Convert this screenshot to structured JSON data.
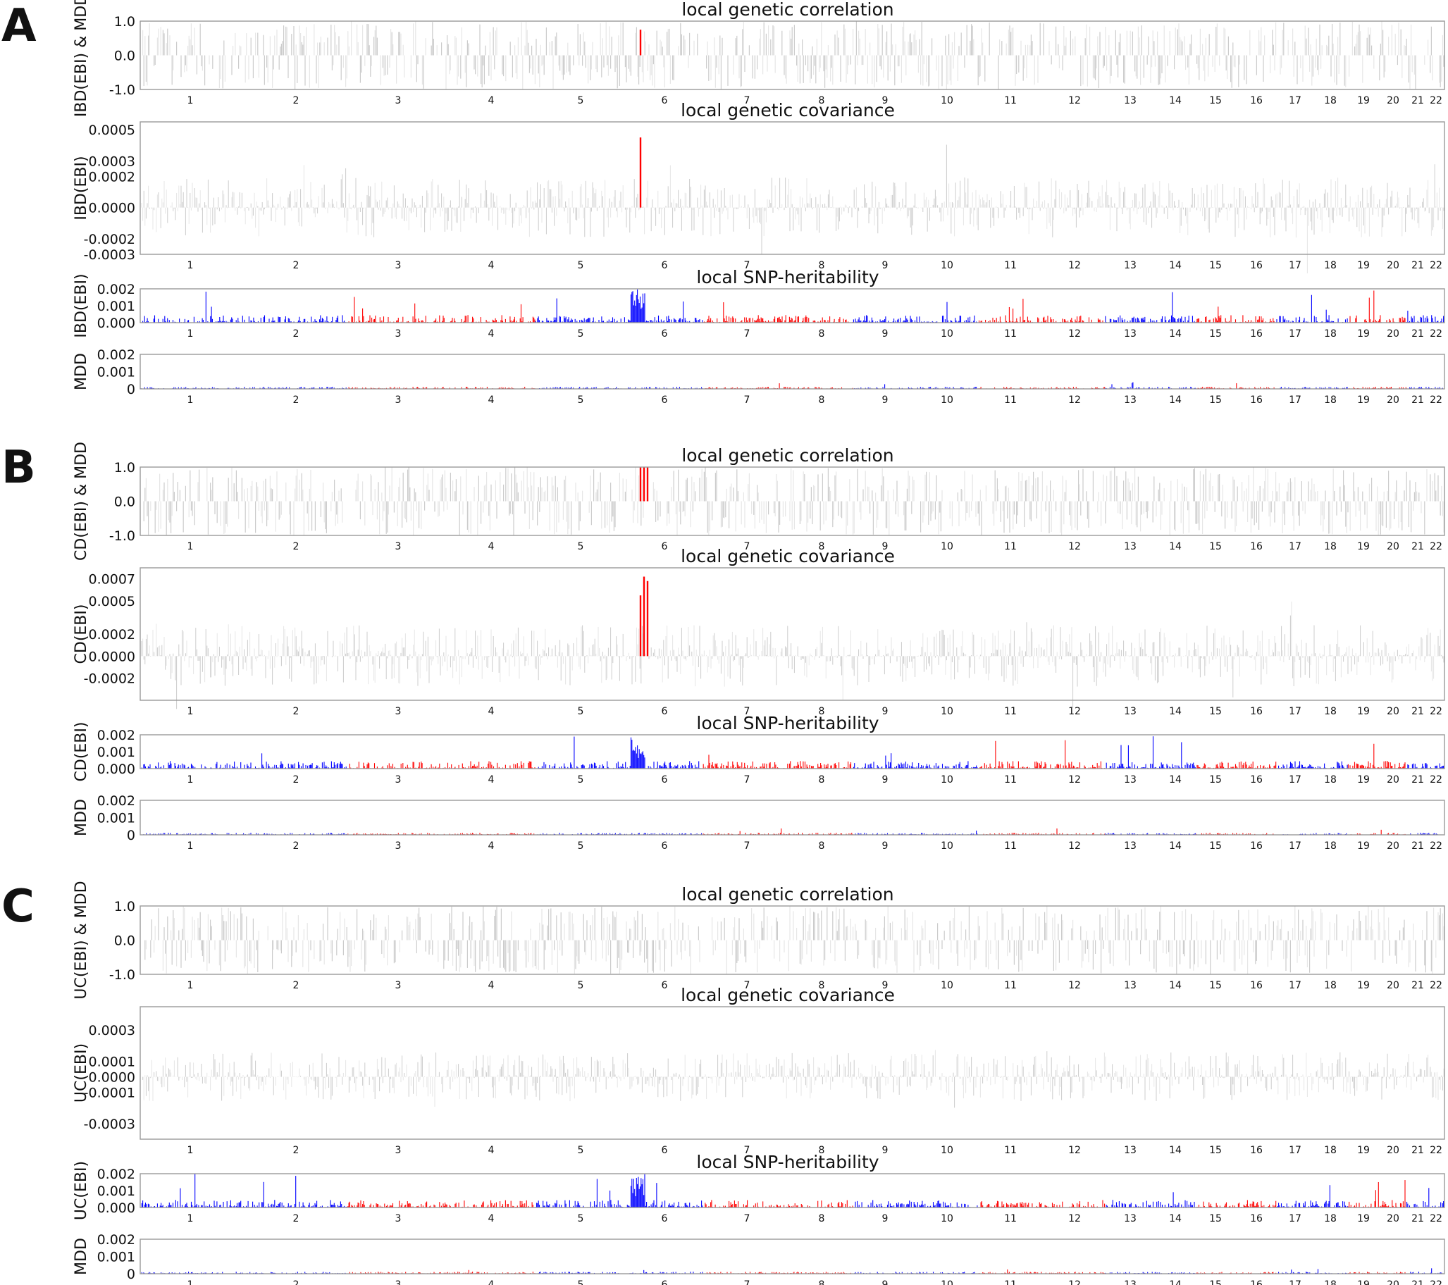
{
  "figure": {
    "colors": {
      "blue": "#0000ff",
      "red": "#ff0000",
      "grey": "#cccccc",
      "light_grey": "#e6e6e6",
      "frame": "#9a9a9a"
    },
    "chromosomes": [
      "1",
      "2",
      "3",
      "4",
      "5",
      "6",
      "7",
      "8",
      "9",
      "10",
      "11",
      "12",
      "13",
      "14",
      "15",
      "16",
      "17",
      "18",
      "19",
      "20",
      "21",
      "22"
    ]
  },
  "chart_data": [
    {
      "panel": "A",
      "trait1": "IBD(EBI)",
      "trait2": "MDD",
      "subplots": [
        {
          "type": "bar",
          "title": "local genetic correlation",
          "ylabel": "IBD(EBI) & MDD",
          "ylim": [
            -1.0,
            1.0
          ],
          "yticks": [
            "1.0",
            "0.0",
            "-1.0"
          ],
          "ytick_values": [
            1.0,
            0.0,
            -1.0
          ],
          "highlight": [
            {
              "chromosome": "6",
              "value": 0.75
            }
          ]
        },
        {
          "type": "bar",
          "title": "local genetic covariance",
          "ylabel": "IBD(EBI)",
          "ylim": [
            -0.0003,
            0.00055
          ],
          "yticks": [
            "0.0005",
            "0.0003",
            "0.0002",
            "0.0000",
            "-0.0002",
            "-0.0003"
          ],
          "ytick_values": [
            0.0005,
            0.0003,
            0.0002,
            0.0,
            -0.0002,
            -0.0003
          ],
          "highlight": [
            {
              "chromosome": "6",
              "value": 0.00045
            }
          ]
        },
        {
          "type": "bar",
          "title": "local SNP-heritability",
          "ylabel": "IBD(EBI)",
          "ylim": [
            0,
            0.002
          ],
          "yticks": [
            "0.002",
            "0.001",
            "0.000"
          ],
          "ytick_values": [
            0.002,
            0.001,
            0.0
          ]
        },
        {
          "type": "bar",
          "title": "",
          "ylabel": "MDD",
          "ylim": [
            0,
            0.002
          ],
          "yticks": [
            "0.002",
            "0.001",
            "0"
          ],
          "ytick_values": [
            0.002,
            0.001,
            0.0
          ]
        }
      ]
    },
    {
      "panel": "B",
      "trait1": "CD(EBI)",
      "trait2": "MDD",
      "subplots": [
        {
          "type": "bar",
          "title": "local genetic correlation",
          "ylabel": "CD(EBI) & MDD",
          "ylim": [
            -1.0,
            1.0
          ],
          "yticks": [
            "1.0",
            "0.0",
            "-1.0"
          ],
          "ytick_values": [
            1.0,
            0.0,
            -1.0
          ],
          "highlight": [
            {
              "chromosome": "6",
              "value": 1.0
            },
            {
              "chromosome": "6",
              "value": 1.0
            },
            {
              "chromosome": "6",
              "value": 1.0
            }
          ]
        },
        {
          "type": "bar",
          "title": "local genetic covariance",
          "ylabel": "CD(EBI)",
          "ylim": [
            -0.0004,
            0.0008
          ],
          "yticks": [
            "0.0007",
            "0.0005",
            "0.0002",
            "0.0000",
            "-0.0002"
          ],
          "ytick_values": [
            0.0007,
            0.0005,
            0.0002,
            0.0,
            -0.0002
          ],
          "highlight": [
            {
              "chromosome": "6",
              "value": 0.00055
            },
            {
              "chromosome": "6",
              "value": 0.00072
            },
            {
              "chromosome": "6",
              "value": 0.00068
            }
          ]
        },
        {
          "type": "bar",
          "title": "local SNP-heritability",
          "ylabel": "CD(EBI)",
          "ylim": [
            0,
            0.002
          ],
          "yticks": [
            "0.002",
            "0.001",
            "0.000"
          ],
          "ytick_values": [
            0.002,
            0.001,
            0.0
          ]
        },
        {
          "type": "bar",
          "title": "",
          "ylabel": "MDD",
          "ylim": [
            0,
            0.002
          ],
          "yticks": [
            "0.002",
            "0.001",
            "0"
          ],
          "ytick_values": [
            0.002,
            0.001,
            0.0
          ]
        }
      ]
    },
    {
      "panel": "C",
      "trait1": "UC(EBI)",
      "trait2": "MDD",
      "subplots": [
        {
          "type": "bar",
          "title": "local genetic correlation",
          "ylabel": "UC(EBI) & MDD",
          "ylim": [
            -1.0,
            1.0
          ],
          "yticks": [
            "1.0",
            "0.0",
            "-1.0"
          ],
          "ytick_values": [
            1.0,
            0.0,
            -1.0
          ],
          "highlight": []
        },
        {
          "type": "bar",
          "title": "local genetic covariance",
          "ylabel": "UC(EBI)",
          "ylim": [
            -0.0004,
            0.00045
          ],
          "yticks": [
            "0.0003",
            "0.0001",
            "0.0000",
            "-0.0001",
            "-0.0003"
          ],
          "ytick_values": [
            0.0003,
            0.0001,
            0.0,
            -0.0001,
            -0.0003
          ],
          "highlight": []
        },
        {
          "type": "bar",
          "title": "local SNP-heritability",
          "ylabel": "UC(EBI)",
          "ylim": [
            0,
            0.002
          ],
          "yticks": [
            "0.002",
            "0.001",
            "0.000"
          ],
          "ytick_values": [
            0.002,
            0.001,
            0.0
          ]
        },
        {
          "type": "bar",
          "title": "",
          "ylabel": "MDD",
          "ylim": [
            0,
            0.002
          ],
          "yticks": [
            "0.002",
            "0.001",
            "0"
          ],
          "ytick_values": [
            0.002,
            0.001,
            0.0
          ]
        }
      ]
    }
  ]
}
